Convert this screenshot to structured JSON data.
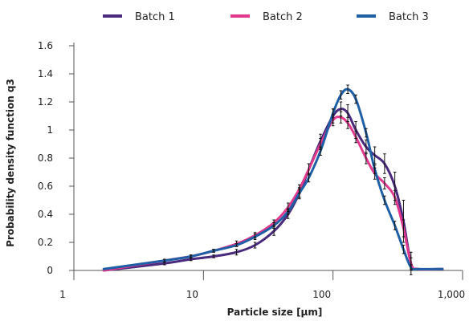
{
  "chart_data": {
    "type": "line",
    "xscale": "log",
    "xlim": [
      1,
      1000
    ],
    "ylim": [
      0,
      1.6
    ],
    "xticks": [
      1,
      10,
      100,
      1000
    ],
    "xtick_labels": [
      "1",
      "10",
      "100",
      "1,000"
    ],
    "yticks": [
      0,
      0.2,
      0.4,
      0.6,
      0.8,
      1,
      1.2,
      1.4,
      1.6
    ],
    "ytick_labels": [
      "0",
      "0.2",
      "0.4",
      "0.6",
      "0.8",
      "1",
      "1.2",
      "1.4",
      "1.6"
    ],
    "xlabel": "Particle size [µm]",
    "ylabel": "Probability density function q3",
    "grid": false,
    "legend_position": "top",
    "error_bars": true,
    "series": [
      {
        "name": "Batch 1",
        "color": "#4a2a7d",
        "points": [
          {
            "x": 1.7,
            "y": 0.0,
            "err": 0.0
          },
          {
            "x": 5,
            "y": 0.05,
            "err": 0.01
          },
          {
            "x": 8,
            "y": 0.08,
            "err": 0.01
          },
          {
            "x": 12,
            "y": 0.1,
            "err": 0.01
          },
          {
            "x": 18,
            "y": 0.13,
            "err": 0.02
          },
          {
            "x": 25,
            "y": 0.18,
            "err": 0.02
          },
          {
            "x": 35,
            "y": 0.28,
            "err": 0.03
          },
          {
            "x": 45,
            "y": 0.4,
            "err": 0.03
          },
          {
            "x": 55,
            "y": 0.55,
            "err": 0.04
          },
          {
            "x": 65,
            "y": 0.72,
            "err": 0.04
          },
          {
            "x": 80,
            "y": 0.92,
            "err": 0.05
          },
          {
            "x": 100,
            "y": 1.1,
            "err": 0.05
          },
          {
            "x": 115,
            "y": 1.15,
            "err": 0.05
          },
          {
            "x": 130,
            "y": 1.12,
            "err": 0.06
          },
          {
            "x": 150,
            "y": 1.0,
            "err": 0.06
          },
          {
            "x": 180,
            "y": 0.88,
            "err": 0.05
          },
          {
            "x": 210,
            "y": 0.82,
            "err": 0.06
          },
          {
            "x": 250,
            "y": 0.76,
            "err": 0.07
          },
          {
            "x": 300,
            "y": 0.6,
            "err": 0.1
          },
          {
            "x": 350,
            "y": 0.35,
            "err": 0.15
          },
          {
            "x": 400,
            "y": 0.05,
            "err": 0.08
          },
          {
            "x": 450,
            "y": 0.01,
            "err": 0.0
          },
          {
            "x": 700,
            "y": 0.01,
            "err": 0.0
          }
        ]
      },
      {
        "name": "Batch 2",
        "color": "#e0398d",
        "points": [
          {
            "x": 1.7,
            "y": 0.0,
            "err": 0.0
          },
          {
            "x": 5,
            "y": 0.07,
            "err": 0.01
          },
          {
            "x": 8,
            "y": 0.1,
            "err": 0.01
          },
          {
            "x": 12,
            "y": 0.14,
            "err": 0.01
          },
          {
            "x": 18,
            "y": 0.19,
            "err": 0.02
          },
          {
            "x": 25,
            "y": 0.25,
            "err": 0.02
          },
          {
            "x": 35,
            "y": 0.34,
            "err": 0.02
          },
          {
            "x": 45,
            "y": 0.45,
            "err": 0.03
          },
          {
            "x": 55,
            "y": 0.58,
            "err": 0.03
          },
          {
            "x": 65,
            "y": 0.72,
            "err": 0.04
          },
          {
            "x": 80,
            "y": 0.9,
            "err": 0.04
          },
          {
            "x": 100,
            "y": 1.07,
            "err": 0.04
          },
          {
            "x": 115,
            "y": 1.09,
            "err": 0.04
          },
          {
            "x": 130,
            "y": 1.05,
            "err": 0.04
          },
          {
            "x": 150,
            "y": 0.95,
            "err": 0.04
          },
          {
            "x": 180,
            "y": 0.8,
            "err": 0.04
          },
          {
            "x": 210,
            "y": 0.69,
            "err": 0.04
          },
          {
            "x": 250,
            "y": 0.62,
            "err": 0.04
          },
          {
            "x": 300,
            "y": 0.52,
            "err": 0.05
          },
          {
            "x": 350,
            "y": 0.3,
            "err": 0.06
          },
          {
            "x": 400,
            "y": 0.05,
            "err": 0.04
          },
          {
            "x": 450,
            "y": 0.01,
            "err": 0.0
          },
          {
            "x": 700,
            "y": 0.01,
            "err": 0.0
          }
        ]
      },
      {
        "name": "Batch 3",
        "color": "#1f5fa6",
        "points": [
          {
            "x": 1.7,
            "y": 0.01,
            "err": 0.0
          },
          {
            "x": 5,
            "y": 0.07,
            "err": 0.01
          },
          {
            "x": 8,
            "y": 0.1,
            "err": 0.01
          },
          {
            "x": 12,
            "y": 0.14,
            "err": 0.01
          },
          {
            "x": 18,
            "y": 0.18,
            "err": 0.01
          },
          {
            "x": 25,
            "y": 0.24,
            "err": 0.02
          },
          {
            "x": 35,
            "y": 0.32,
            "err": 0.02
          },
          {
            "x": 45,
            "y": 0.42,
            "err": 0.02
          },
          {
            "x": 55,
            "y": 0.55,
            "err": 0.03
          },
          {
            "x": 65,
            "y": 0.66,
            "err": 0.03
          },
          {
            "x": 80,
            "y": 0.85,
            "err": 0.03
          },
          {
            "x": 100,
            "y": 1.12,
            "err": 0.03
          },
          {
            "x": 115,
            "y": 1.25,
            "err": 0.03
          },
          {
            "x": 130,
            "y": 1.29,
            "err": 0.03
          },
          {
            "x": 150,
            "y": 1.22,
            "err": 0.03
          },
          {
            "x": 180,
            "y": 0.98,
            "err": 0.03
          },
          {
            "x": 210,
            "y": 0.72,
            "err": 0.03
          },
          {
            "x": 250,
            "y": 0.5,
            "err": 0.03
          },
          {
            "x": 300,
            "y": 0.32,
            "err": 0.03
          },
          {
            "x": 350,
            "y": 0.15,
            "err": 0.03
          },
          {
            "x": 400,
            "y": 0.02,
            "err": 0.02
          },
          {
            "x": 450,
            "y": 0.01,
            "err": 0.0
          },
          {
            "x": 700,
            "y": 0.01,
            "err": 0.0
          }
        ]
      }
    ]
  }
}
